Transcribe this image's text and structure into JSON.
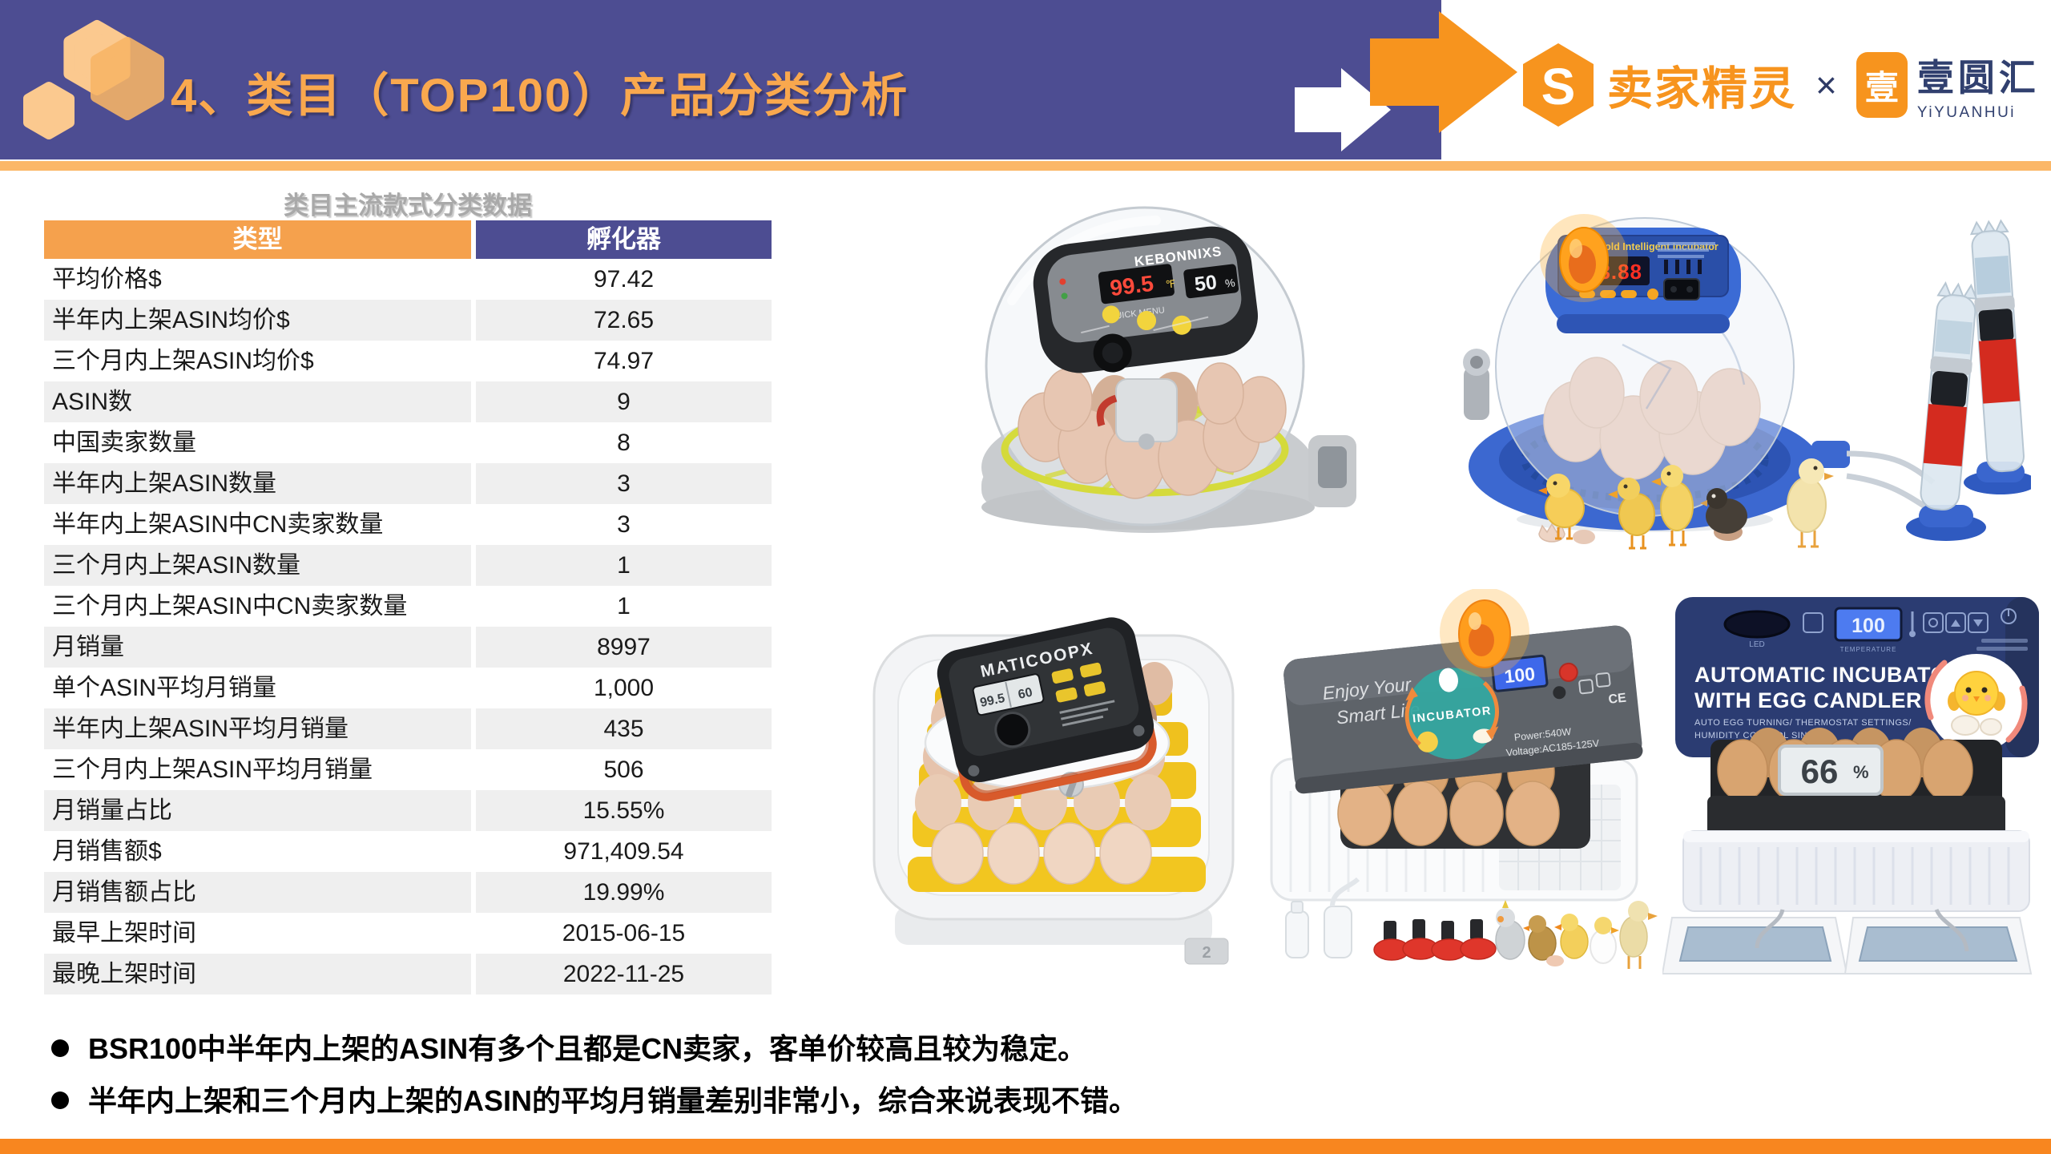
{
  "header": {
    "title": "4、类目（TOP100）产品分类分析",
    "logos": {
      "brand1_icon_char": "S",
      "brand1": "卖家精灵",
      "separator": "×",
      "brand2_icon_char": "壹",
      "brand2": "壹圆汇",
      "brand2_sub": "YiYUANHUi"
    }
  },
  "table": {
    "title": "类目主流款式分类数据",
    "columns": [
      "类型",
      "孵化器"
    ],
    "rows": [
      {
        "label": "平均价格$",
        "value": "97.42"
      },
      {
        "label": "半年内上架ASIN均价$",
        "value": "72.65"
      },
      {
        "label": "三个月内上架ASIN均价$",
        "value": "74.97"
      },
      {
        "label": "ASIN数",
        "value": "9"
      },
      {
        "label": "中国卖家数量",
        "value": "8"
      },
      {
        "label": "半年内上架ASIN数量",
        "value": "3"
      },
      {
        "label": "半年内上架ASIN中CN卖家数量",
        "value": "3"
      },
      {
        "label": "三个月内上架ASIN数量",
        "value": "1"
      },
      {
        "label": "三个月内上架ASIN中CN卖家数量",
        "value": "1"
      },
      {
        "label": "月销量",
        "value": "8997"
      },
      {
        "label": "单个ASIN平均月销量",
        "value": "1,000"
      },
      {
        "label": "半年内上架ASIN平均月销量",
        "value": "435"
      },
      {
        "label": "三个月内上架ASIN平均月销量",
        "value": "506"
      },
      {
        "label": "月销量占比",
        "value": "15.55%"
      },
      {
        "label": "月销售额$",
        "value": "971,409.54"
      },
      {
        "label": "月销售额占比",
        "value": "19.99%"
      },
      {
        "label": "最早上架时间",
        "value": "2015-06-15"
      },
      {
        "label": "最晚上架时间",
        "value": "2022-11-25"
      }
    ]
  },
  "bullets": {
    "items": [
      "BSR100中半年内上架的ASIN有多个且都是CN卖家，客单价较高且较为稳定。",
      "半年内上架和三个月内上架的ASIN的平均月销量差别非常小，综合来说表现不错。"
    ]
  },
  "products": {
    "p1": {
      "brand": "KEBONNIXS",
      "temp": "99.5",
      "temp_unit": "℉",
      "humidity": "50",
      "humidity_unit": "%",
      "quick_menu": "QUICK MENU"
    },
    "p2": {
      "panel_title": "Household Intelligent Incubator",
      "display": "38.88"
    },
    "p3": {
      "brand": "MATICOOPX",
      "display_temp": "99.5",
      "display_hum": "60",
      "tab": "2"
    },
    "p4": {
      "script1": "Enjoy Your",
      "script2": "Smart Life",
      "badge": "INCUBATOR",
      "display": "100",
      "power": "Power:540W",
      "voltage": "Voltage:AC185-125V",
      "ce": "CE"
    },
    "p5": {
      "title1": "AUTOMATIC INCUBATOR",
      "title2": "WITH EGG CANDLER",
      "subtitle1": "AUTO EGG TURNING/ THERMOSTAT SETTINGS/",
      "subtitle2": "HUMIDITY CONTROL SINK",
      "led": "LED",
      "display": "100",
      "temp_label": "TEMPERATURE",
      "humidity": "66",
      "humidity_unit": "%"
    }
  },
  "colors": {
    "header_bg": "#4D4D92",
    "accent_orange": "#F7941E",
    "divider_orange": "#FBB768",
    "table_header_orange": "#F5A14D",
    "table_header_purple": "#4D4D92",
    "row_alt": "#EFEFEF",
    "footer_orange": "#F8861F",
    "logo_navy": "#31406F"
  }
}
